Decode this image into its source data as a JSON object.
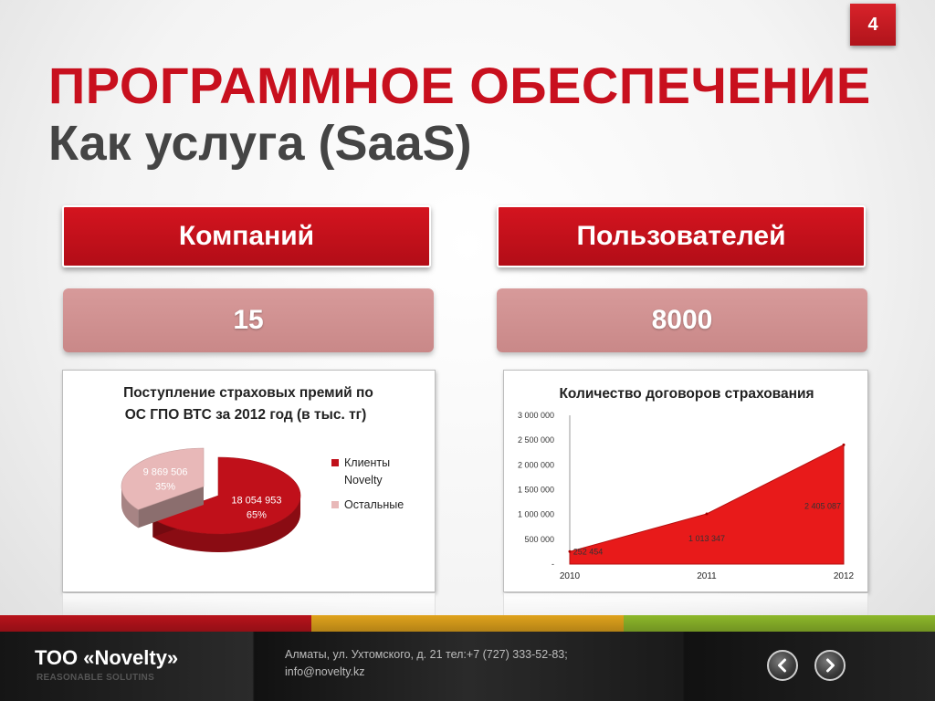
{
  "slide": {
    "page_number": "4",
    "title": "ПРОГРАММНОЕ ОБЕСПЕЧЕНИЕ",
    "subtitle": "Как услуга (SaaS)"
  },
  "stats": {
    "companies": {
      "label": "Компаний",
      "value": "15"
    },
    "users": {
      "label": "Пользователей",
      "value": "8000"
    }
  },
  "chart_data": [
    {
      "type": "pie",
      "title_lines": [
        "Поступление страховых премий по",
        "ОС ГПО ВТС за 2012 год (в тыс. тг)"
      ],
      "slices": [
        {
          "label": "Клиенты Novelty",
          "legend_lines": [
            "Клиенты",
            "Novelty"
          ],
          "value_text": "18 054 953",
          "value": 18054953,
          "percent_text": "65%",
          "color": "#c0101a"
        },
        {
          "label": "Остальные",
          "legend_lines": [
            "Остальные"
          ],
          "value_text": "9 869 506",
          "value": 9869506,
          "percent_text": "35%",
          "color": "#e8b8b8"
        }
      ]
    },
    {
      "type": "area",
      "title": "Количество договоров страхования",
      "x": [
        "2010",
        "2011",
        "2012"
      ],
      "values": [
        252454,
        1013347,
        2405087
      ],
      "value_labels": [
        "252 454",
        "1 013 347",
        "2 405 087"
      ],
      "y_ticks": [
        "3 000 000",
        "2 500 000",
        "2 000 000",
        "1 500 000",
        "1 000 000",
        "500 000",
        "-"
      ],
      "ylim": [
        0,
        3000000
      ],
      "color": "#e81a1a",
      "grid": false
    }
  ],
  "footer": {
    "company": "ТОО «Novelty»",
    "tagline": "REASONABLE SOLUTINS",
    "address": "Алматы, ул. Ухтомского, д. 21 тел:+7 (727) 333-52-83;",
    "email": "info@novelty.kz",
    "stripe_colors": [
      "#b8131b",
      "#e0a31c",
      "#8db82a"
    ]
  }
}
